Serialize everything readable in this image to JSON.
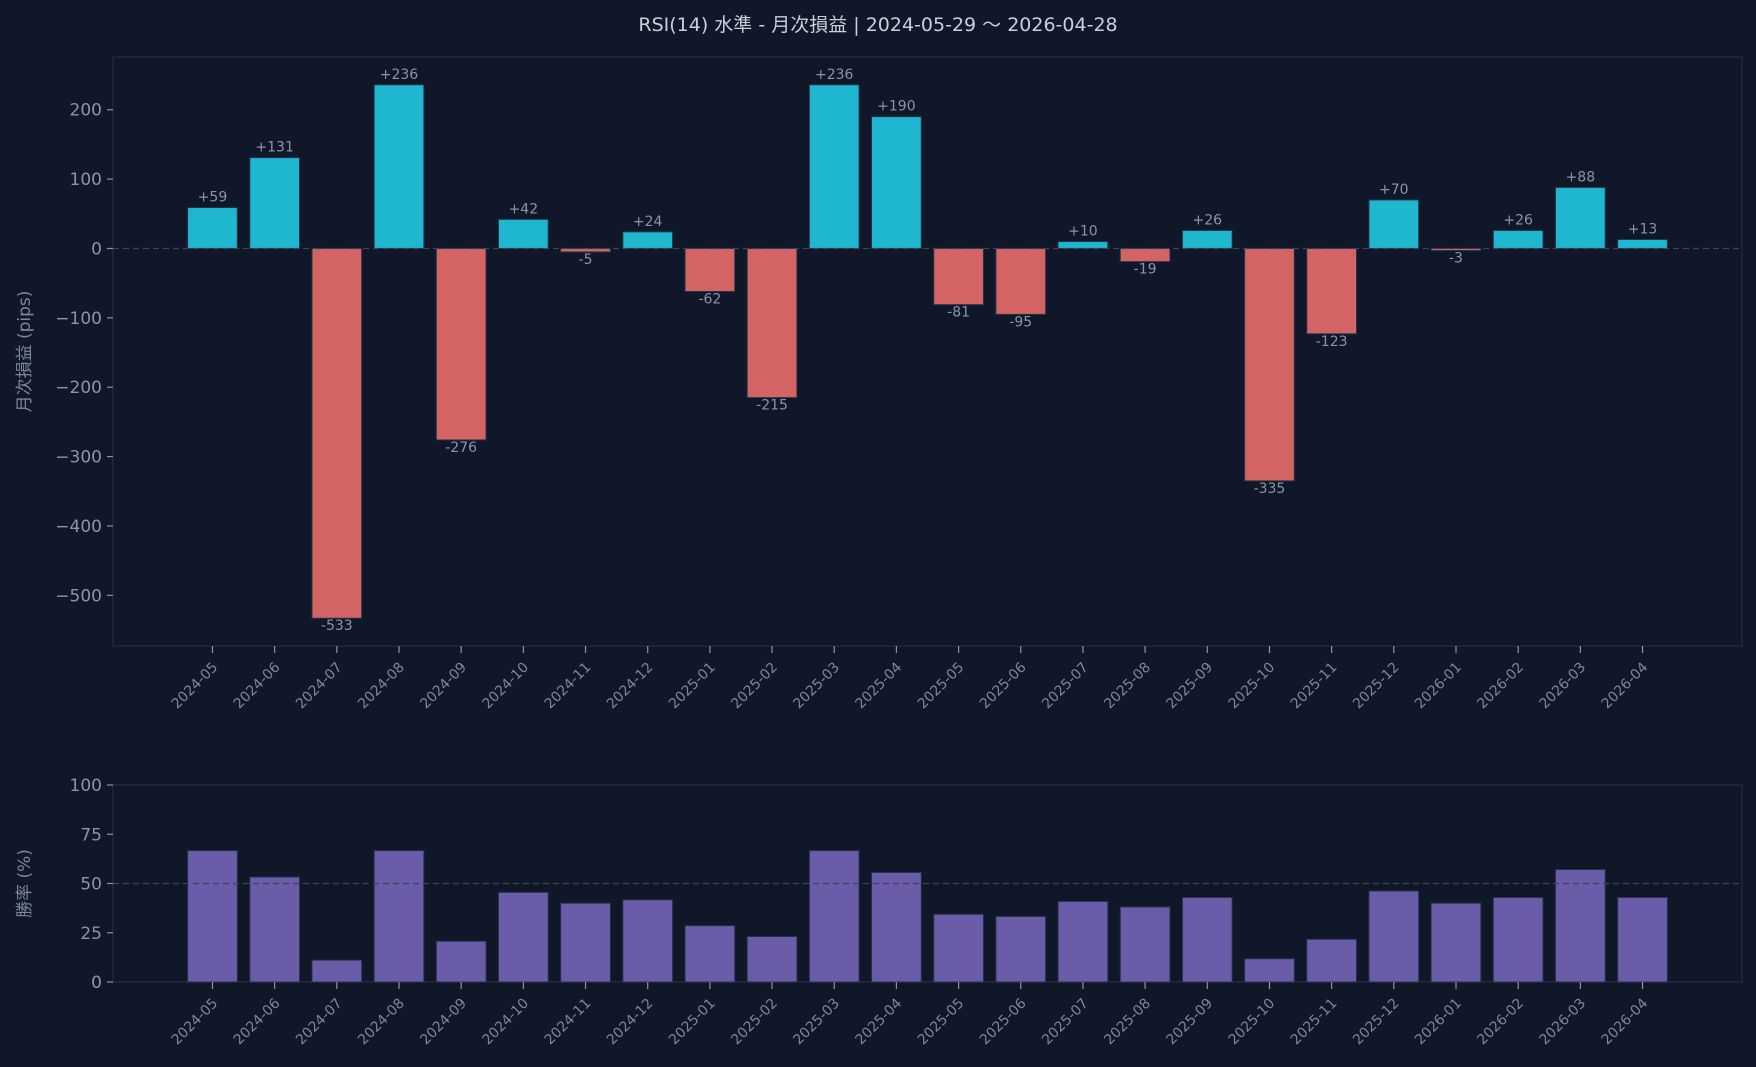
{
  "colors": {
    "background": "#0f1729",
    "positive": "#1fb6d0",
    "negative": "#d46464",
    "winrate": "#6a5ca8",
    "grid": "#3a4558",
    "frame": "#1f2a3d"
  },
  "chart_data": [
    {
      "type": "bar",
      "title": "RSI(14) 水準 - 月次損益 | 2024-05-29 〜 2026-04-28",
      "ylabel": "月次損益 (pips)",
      "xlabel": "",
      "ylim": [
        -573,
        276
      ],
      "yticks": [
        200,
        100,
        0,
        -100,
        -200,
        -300,
        -400,
        -500
      ],
      "ytick_labels": [
        "200",
        "100",
        "0",
        "−100",
        "−200",
        "−300",
        "−400",
        "−500"
      ],
      "reference_line": 0,
      "categories": [
        "2024-05",
        "2024-06",
        "2024-07",
        "2024-08",
        "2024-09",
        "2024-10",
        "2024-11",
        "2024-12",
        "2025-01",
        "2025-02",
        "2025-03",
        "2025-04",
        "2025-05",
        "2025-06",
        "2025-07",
        "2025-08",
        "2025-09",
        "2025-10",
        "2025-11",
        "2025-12",
        "2026-01",
        "2026-02",
        "2026-03",
        "2026-04"
      ],
      "values": [
        59,
        131,
        -533,
        236,
        -276,
        42,
        -5,
        24,
        -62,
        -215,
        236,
        190,
        -81,
        -95,
        10,
        -19,
        26,
        -335,
        -123,
        70,
        -3,
        26,
        88,
        13
      ],
      "data_labels": [
        "+59",
        "+131",
        "-533",
        "+236",
        "-276",
        "+42",
        "-5",
        "+24",
        "-62",
        "-215",
        "+236",
        "+190",
        "-81",
        "-95",
        "+10",
        "-19",
        "+26",
        "-335",
        "-123",
        "+70",
        "-3",
        "+26",
        "+88",
        "+13"
      ]
    },
    {
      "type": "bar",
      "title": "",
      "ylabel": "勝率 (%)",
      "xlabel": "",
      "ylim": [
        0,
        100
      ],
      "yticks": [
        0,
        25,
        50,
        75,
        100
      ],
      "ytick_labels": [
        "0",
        "25",
        "50",
        "75",
        "100"
      ],
      "reference_line": 50,
      "categories": [
        "2024-05",
        "2024-06",
        "2024-07",
        "2024-08",
        "2024-09",
        "2024-10",
        "2024-11",
        "2024-12",
        "2025-01",
        "2025-02",
        "2025-03",
        "2025-04",
        "2025-05",
        "2025-06",
        "2025-07",
        "2025-08",
        "2025-09",
        "2025-10",
        "2025-11",
        "2025-12",
        "2026-01",
        "2026-02",
        "2026-03",
        "2026-04"
      ],
      "values": [
        66.7,
        53.3,
        11.1,
        66.7,
        20.7,
        45.5,
        40.0,
        41.7,
        28.6,
        23.1,
        66.7,
        55.6,
        34.4,
        33.3,
        40.9,
        38.1,
        42.9,
        11.8,
        21.7,
        46.2,
        40.0,
        42.9,
        57.1,
        42.9
      ]
    }
  ]
}
